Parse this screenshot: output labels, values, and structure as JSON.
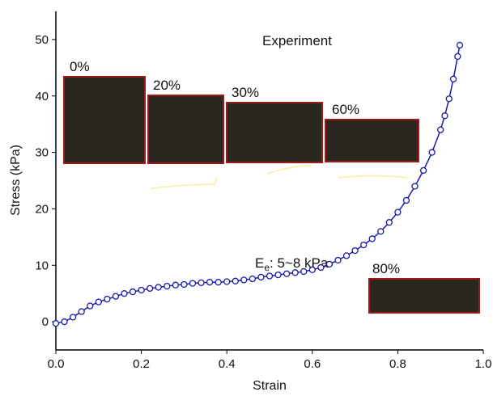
{
  "chart_data": {
    "type": "line",
    "x_label": "Strain",
    "y_label": "Stress (kPa)",
    "x": [
      0,
      0.02,
      0.04,
      0.06,
      0.08,
      0.1,
      0.12,
      0.14,
      0.16,
      0.18,
      0.2,
      0.22,
      0.24,
      0.26,
      0.28,
      0.3,
      0.32,
      0.34,
      0.36,
      0.38,
      0.4,
      0.42,
      0.44,
      0.46,
      0.48,
      0.5,
      0.52,
      0.54,
      0.56,
      0.58,
      0.6,
      0.62,
      0.64,
      0.66,
      0.68,
      0.7,
      0.72,
      0.74,
      0.76,
      0.78,
      0.8,
      0.82,
      0.84,
      0.86,
      0.88,
      0.9,
      0.91,
      0.92,
      0.93,
      0.94,
      0.945
    ],
    "values": [
      -0.3,
      0,
      0.8,
      1.8,
      2.8,
      3.5,
      4.0,
      4.5,
      5.0,
      5.3,
      5.6,
      5.9,
      6.1,
      6.3,
      6.5,
      6.6,
      6.8,
      6.9,
      7.0,
      7.0,
      7.1,
      7.2,
      7.4,
      7.6,
      7.9,
      8.1,
      8.3,
      8.5,
      8.7,
      8.9,
      9.2,
      9.6,
      10.2,
      10.9,
      11.7,
      12.6,
      13.6,
      14.7,
      16.0,
      17.6,
      19.4,
      21.5,
      24.0,
      26.8,
      30.0,
      34.0,
      36.5,
      39.5,
      43.0,
      47.0,
      49.0
    ],
    "color": "#1a1aa8",
    "xlim": [
      0,
      1
    ],
    "xticks": [
      {
        "value": 0,
        "label": "0.0"
      },
      0.2,
      0.4,
      0.6,
      0.8,
      {
        "value": 1,
        "label": "1.0"
      }
    ],
    "ylim": [
      -5,
      55
    ],
    "yticks": [
      0,
      10,
      20,
      30,
      40,
      50
    ],
    "annotations": {
      "experiment": "Experiment",
      "p0": "0%",
      "p20": "20%",
      "p30": "30%",
      "p60": "60%",
      "p80": "80%",
      "modulus": {
        "main": "E",
        "sub": "e",
        "rest": ": 5~8 kPa"
      }
    }
  }
}
